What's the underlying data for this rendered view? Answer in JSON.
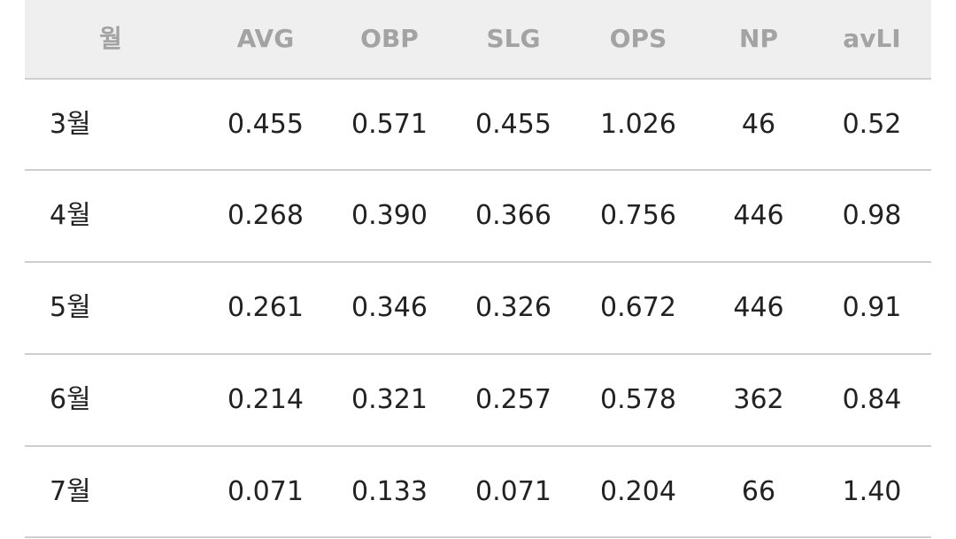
{
  "table": {
    "headers": [
      "월",
      "AVG",
      "OBP",
      "SLG",
      "OPS",
      "NP",
      "avLI"
    ],
    "rows": [
      [
        "3월",
        "0.455",
        "0.571",
        "0.455",
        "1.026",
        "46",
        "0.52"
      ],
      [
        "4월",
        "0.268",
        "0.390",
        "0.366",
        "0.756",
        "446",
        "0.98"
      ],
      [
        "5월",
        "0.261",
        "0.346",
        "0.326",
        "0.672",
        "446",
        "0.91"
      ],
      [
        "6월",
        "0.214",
        "0.321",
        "0.257",
        "0.578",
        "362",
        "0.84"
      ],
      [
        "7월",
        "0.071",
        "0.133",
        "0.071",
        "0.204",
        "66",
        "1.40"
      ]
    ]
  }
}
